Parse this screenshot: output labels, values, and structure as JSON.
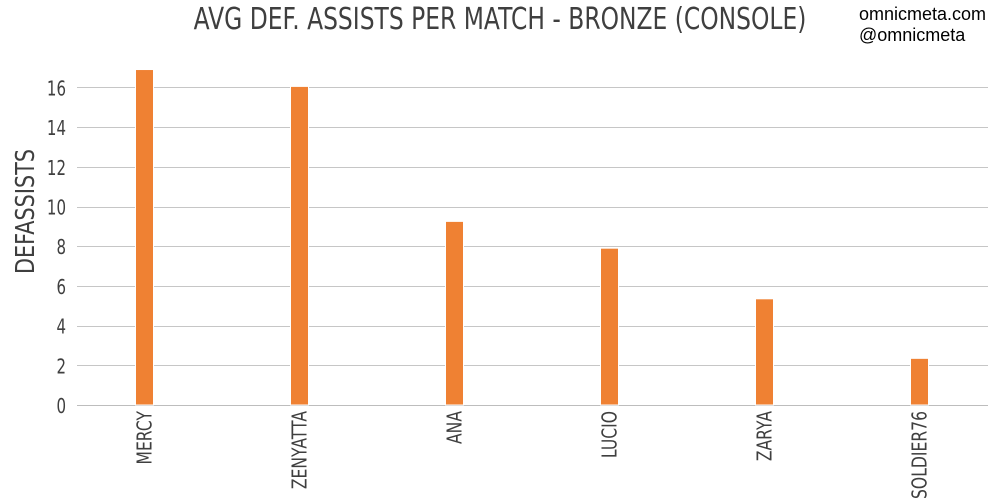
{
  "watermark": {
    "line1": "omnicmeta.com",
    "line2": "@omnicmeta"
  },
  "colors": {
    "bar": "#ef8133",
    "grid": "#c6c6c6",
    "text": "#3f3f3f"
  },
  "chart_data": {
    "type": "bar",
    "title": "AVG DEF. ASSISTS PER MATCH - BRONZE (CONSOLE)",
    "xlabel": "",
    "ylabel": "DEFASSISTS",
    "categories": [
      "MERCY",
      "ZENYATTA",
      "ANA",
      "LUCIO",
      "ZARYA",
      "SOLDIER76"
    ],
    "values": [
      16.9,
      16.05,
      9.25,
      7.9,
      5.35,
      2.35
    ],
    "ylim": [
      0,
      17
    ],
    "yticks": [
      0,
      2,
      4,
      6,
      8,
      10,
      12,
      14,
      16
    ],
    "grid": true,
    "legend": "none"
  }
}
